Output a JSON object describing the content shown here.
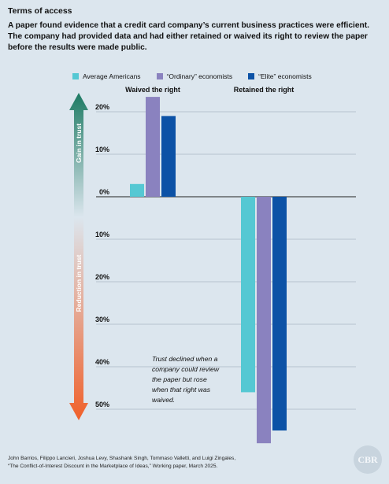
{
  "heading": "Terms of access",
  "subtitle": "A paper found evidence that a credit card company’s current business practices were efficient. The company had provided data and had either retained or waived its right to review the paper before the results were made public.",
  "source": {
    "line1": "John Barrios, Filippo Lancieri, Joshua Levy, Shashank Singh, Tommaso Valletti, and Luigi Zingales,",
    "line2": "“The Conflict-of-Interest Discount in the Marketplace of Ideas,” Working paper, March 2025."
  },
  "logo": "CBR",
  "colors": {
    "background": "#dce6ee",
    "gain_arrow": "#1d7a63",
    "reduction_arrow": "#f0602a"
  },
  "arrow_labels": {
    "gain": "Gain in trust",
    "reduction": "Reduction in trust"
  },
  "chart_data": {
    "type": "bar",
    "categories": [
      "Waived the right",
      "Retained the right"
    ],
    "series": [
      {
        "name": "Average Americans",
        "color": "#55c8d3",
        "values": [
          3,
          -46
        ]
      },
      {
        "name": "“Ordinary” economists",
        "color": "#8a82bf",
        "values": [
          23.5,
          -58
        ]
      },
      {
        "name": "“Elite” economists",
        "color": "#0c52a6",
        "values": [
          19,
          -55
        ]
      }
    ],
    "yticks": [
      20,
      10,
      0,
      -10,
      -20,
      -30,
      -40,
      -50
    ],
    "ytick_labels": [
      "20%",
      "10%",
      "0%",
      "10%",
      "20%",
      "30%",
      "40%",
      "50%"
    ],
    "ylim": [
      -58,
      24
    ],
    "grid": true,
    "legend_position": "top",
    "annotation": "Trust declined when a company could review the paper but rose when that right was waived."
  }
}
